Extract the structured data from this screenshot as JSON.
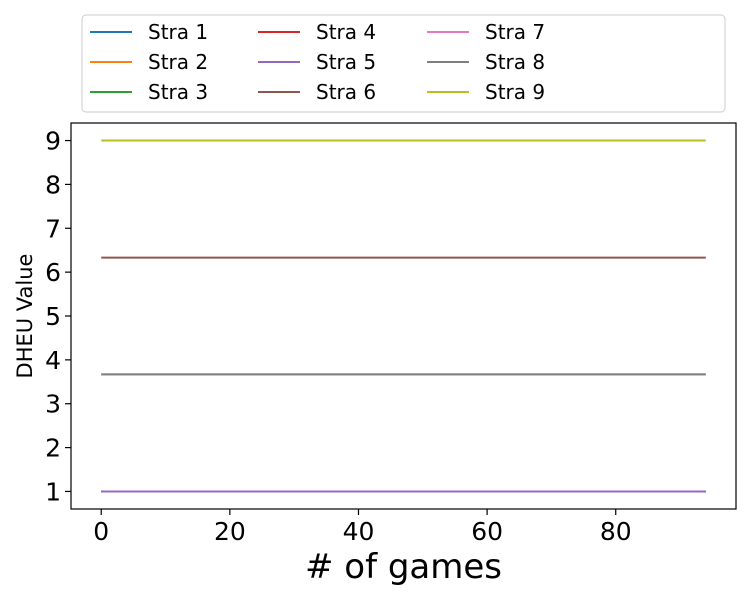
{
  "chart_data": {
    "type": "line",
    "title": "",
    "xlabel": "# of games",
    "ylabel": "DHEU Value",
    "xlim": [
      -4.7,
      98.7
    ],
    "ylim": [
      0.6,
      9.4
    ],
    "x_range": [
      0,
      94
    ],
    "xticks": [
      0,
      20,
      40,
      60,
      80
    ],
    "yticks": [
      1,
      2,
      3,
      4,
      5,
      6,
      7,
      8,
      9
    ],
    "grid": false,
    "legend": {
      "placement": "top, above plot",
      "ncol": 4
    },
    "series": [
      {
        "name": "Stra 1",
        "color": "#1f77b4",
        "value": 1.0
      },
      {
        "name": "Stra 2",
        "color": "#ff7f0e",
        "value": 1.0
      },
      {
        "name": "Stra 3",
        "color": "#2ca02c",
        "value": 1.0
      },
      {
        "name": "Stra 4",
        "color": "#d62728",
        "value": 1.0
      },
      {
        "name": "Stra 5",
        "color": "#9467bd",
        "value": 1.0
      },
      {
        "name": "Stra 6",
        "color": "#8c564b",
        "value": 6.33
      },
      {
        "name": "Stra 7",
        "color": "#e377c2",
        "value": 3.67
      },
      {
        "name": "Stra 8",
        "color": "#7f7f7f",
        "value": 3.67
      },
      {
        "name": "Stra 9",
        "color": "#bcbd22",
        "value": 9.0
      }
    ]
  }
}
